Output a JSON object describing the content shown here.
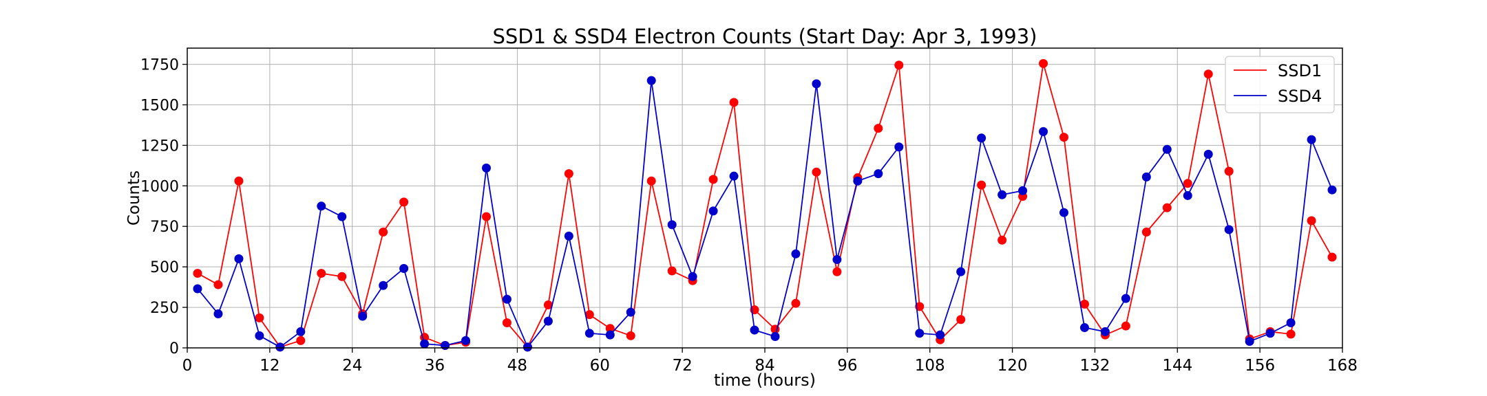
{
  "chart_data": {
    "type": "line",
    "title": "SSD1 & SSD4 Electron Counts (Start Day: Apr 3, 1993)",
    "xlabel": "time (hours)",
    "ylabel": "Counts",
    "xlim": [
      0,
      168
    ],
    "ylim": [
      0,
      1850
    ],
    "xticks": [
      0,
      12,
      24,
      36,
      48,
      60,
      72,
      84,
      96,
      108,
      120,
      132,
      144,
      156,
      168
    ],
    "yticks": [
      0,
      250,
      500,
      750,
      1000,
      1250,
      1500,
      1750
    ],
    "grid": true,
    "legend_position": "top-right",
    "x": [
      1.5,
      4.5,
      7.5,
      10.5,
      13.5,
      16.5,
      19.5,
      22.5,
      25.5,
      28.5,
      31.5,
      34.5,
      37.5,
      40.5,
      43.5,
      46.5,
      49.5,
      52.5,
      55.5,
      58.5,
      61.5,
      64.5,
      67.5,
      70.5,
      73.5,
      76.5,
      79.5,
      82.5,
      85.5,
      88.5,
      91.5,
      94.5,
      97.5,
      100.5,
      103.5,
      106.5,
      109.5,
      112.5,
      115.5,
      118.5,
      121.5,
      124.5,
      127.5,
      130.5,
      133.5,
      136.5,
      139.5,
      142.5,
      145.5,
      148.5,
      151.5,
      154.5,
      157.5,
      160.5,
      163.5,
      166.5
    ],
    "series": [
      {
        "name": "SSD1",
        "color": "#ff0000",
        "values": [
          460,
          390,
          1030,
          185,
          5,
          45,
          460,
          440,
          210,
          715,
          900,
          65,
          15,
          35,
          810,
          155,
          5,
          265,
          1075,
          205,
          120,
          75,
          1030,
          475,
          415,
          1040,
          1515,
          235,
          115,
          275,
          1085,
          470,
          1050,
          1355,
          1745,
          255,
          50,
          175,
          1005,
          665,
          935,
          1755,
          1300,
          270,
          80,
          135,
          715,
          865,
          1015,
          1690,
          1090,
          55,
          100,
          85,
          785,
          560
        ]
      },
      {
        "name": "SSD4",
        "color": "#0000cc",
        "values": [
          365,
          210,
          550,
          75,
          5,
          100,
          875,
          810,
          195,
          385,
          490,
          25,
          15,
          45,
          1110,
          300,
          5,
          165,
          690,
          90,
          80,
          220,
          1650,
          760,
          440,
          845,
          1060,
          110,
          70,
          580,
          1630,
          545,
          1030,
          1075,
          1240,
          90,
          80,
          470,
          1295,
          945,
          970,
          1335,
          835,
          125,
          100,
          305,
          1055,
          1225,
          940,
          1195,
          730,
          40,
          90,
          155,
          1285,
          975
        ]
      }
    ]
  }
}
